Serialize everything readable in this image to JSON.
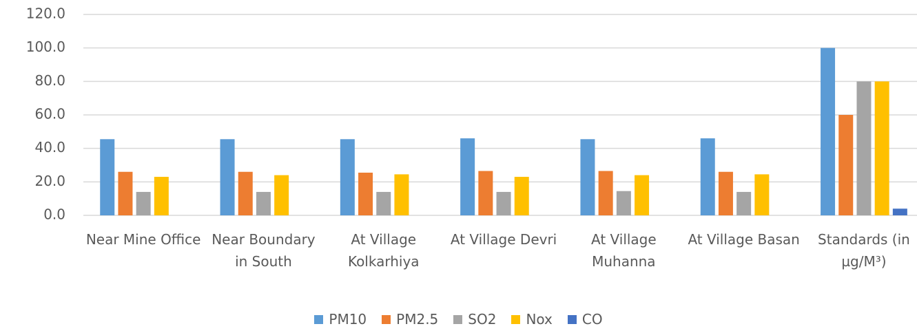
{
  "chart_data": {
    "type": "bar",
    "categories": [
      "Near Mine Office",
      "Near Boundary in South",
      "At Village Kolkarhiya",
      "At Village Devri",
      "At Village Muhanna",
      "At Village Basan",
      "Standards (in µg/M³)"
    ],
    "series": [
      {
        "name": "PM10",
        "color": "#5b9bd5",
        "values": [
          45.5,
          45.5,
          45.5,
          46,
          45.5,
          46,
          100
        ]
      },
      {
        "name": "PM2.5",
        "color": "#ed7d31",
        "values": [
          26,
          26,
          25.5,
          26.5,
          26.5,
          26,
          60
        ]
      },
      {
        "name": "SO2",
        "color": "#a5a5a5",
        "values": [
          14,
          14,
          14,
          14,
          14.5,
          14,
          80
        ]
      },
      {
        "name": "Nox",
        "color": "#ffc000",
        "values": [
          23,
          24,
          24.5,
          23,
          24,
          24.5,
          80
        ]
      },
      {
        "name": "CO",
        "color": "#4472c4",
        "values": [
          null,
          null,
          null,
          null,
          null,
          null,
          4
        ]
      }
    ],
    "ylim": [
      0,
      120
    ],
    "yticks": [
      {
        "value": 0,
        "label": "0.0"
      },
      {
        "value": 20,
        "label": "20.0"
      },
      {
        "value": 40,
        "label": "40.0"
      },
      {
        "value": 60,
        "label": "60.0"
      },
      {
        "value": 80,
        "label": "80.0"
      },
      {
        "value": 100,
        "label": "100.0"
      },
      {
        "value": 120,
        "label": "120.0"
      }
    ],
    "grid": true,
    "legend": "bottom"
  }
}
